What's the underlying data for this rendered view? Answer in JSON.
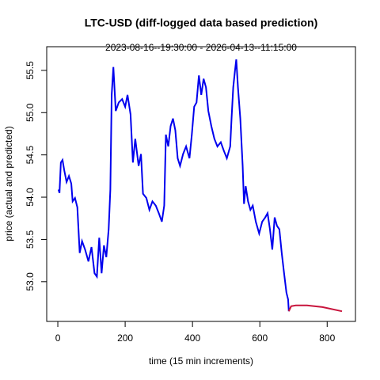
{
  "chart_data": {
    "type": "line",
    "title": "LTC-USD (diff-logged data based prediction)",
    "subtitle": "2023-08-16--19:30:00  -  2026-04-13--11:15:00",
    "xlabel": "time (15 min increments)",
    "ylabel": "price (actual and predicted)",
    "xlim": [
      -33,
      884
    ],
    "xticks": [
      0,
      200,
      400,
      600,
      800
    ],
    "ylim": [
      52.53,
      55.78
    ],
    "yticks": [
      {
        "value": 53,
        "label": "53.0"
      },
      53.5,
      {
        "value": 54,
        "label": "54.0"
      },
      54.5,
      {
        "value": 55,
        "label": "55.0"
      },
      55.5
    ],
    "series": [
      {
        "color": "#0000ee",
        "x": [
          2,
          5,
          9,
          14,
          19,
          26,
          33,
          40,
          44,
          51,
          58,
          65,
          72,
          81,
          91,
          100,
          109,
          116,
          123,
          130,
          137,
          144,
          151,
          156,
          160,
          165,
          172,
          181,
          191,
          200,
          207,
          216,
          223,
          230,
          240,
          247,
          253,
          263,
          272,
          281,
          291,
          300,
          309,
          316,
          321,
          328,
          335,
          342,
          349,
          356,
          363,
          372,
          381,
          391,
          398,
          405,
          412,
          419,
          426,
          433,
          440,
          447,
          456,
          465,
          474,
          484,
          493,
          502,
          512,
          516,
          521,
          526,
          530,
          535,
          542,
          549,
          553,
          558,
          565,
          572,
          579,
          588,
          598,
          607,
          616,
          623,
          630,
          637,
          644,
          651,
          658,
          665,
          672,
          679,
          684,
          686
        ],
        "values": [
          54.09,
          54.05,
          54.41,
          54.44,
          54.32,
          54.18,
          54.25,
          54.16,
          53.95,
          53.99,
          53.88,
          53.34,
          53.48,
          53.38,
          53.24,
          53.41,
          53.1,
          53.06,
          53.52,
          53.1,
          53.43,
          53.29,
          53.62,
          54.09,
          55.21,
          55.54,
          55.02,
          55.12,
          55.16,
          55.07,
          55.21,
          54.98,
          54.41,
          54.69,
          54.37,
          54.51,
          54.04,
          53.99,
          53.85,
          53.95,
          53.9,
          53.81,
          53.71,
          53.9,
          54.74,
          54.6,
          54.84,
          54.93,
          54.79,
          54.46,
          54.37,
          54.51,
          54.6,
          54.46,
          54.74,
          55.07,
          55.12,
          55.44,
          55.21,
          55.4,
          55.3,
          55.02,
          54.84,
          54.69,
          54.6,
          54.65,
          54.55,
          54.46,
          54.6,
          54.93,
          55.3,
          55.49,
          55.63,
          55.3,
          54.93,
          54.37,
          53.92,
          54.13,
          53.95,
          53.85,
          53.9,
          53.71,
          53.57,
          53.71,
          53.76,
          53.81,
          53.62,
          53.38,
          53.76,
          53.66,
          53.62,
          53.34,
          53.1,
          52.87,
          52.79,
          52.65
        ]
      },
      {
        "color": "#c8143c",
        "x": [
          686,
          693,
          707,
          740,
          786,
          844
        ],
        "values": [
          52.65,
          52.71,
          52.72,
          52.72,
          52.7,
          52.65
        ]
      }
    ]
  }
}
